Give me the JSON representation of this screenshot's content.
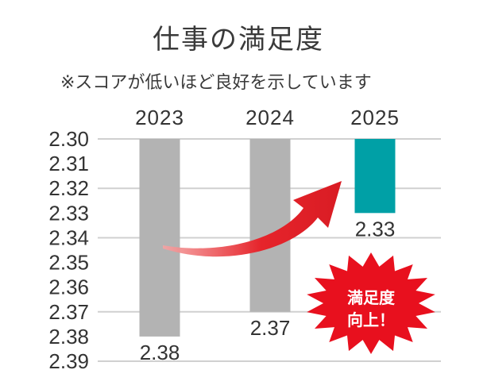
{
  "header": {
    "title": "仕事の満足度",
    "subtitle": "※スコアが低いほど良好を示しています"
  },
  "chart_data": {
    "type": "bar",
    "categories": [
      "2023",
      "2024",
      "2025"
    ],
    "values": [
      2.38,
      2.37,
      2.33
    ],
    "value_labels": [
      "2.38",
      "2.37",
      "2.33"
    ],
    "ylim": [
      2.3,
      2.39
    ],
    "y_axis_inverted": true,
    "y_ticks": [
      "2.30",
      "2.31",
      "2.32",
      "2.33",
      "2.34",
      "2.35",
      "2.36",
      "2.37",
      "2.38",
      "2.39"
    ],
    "gridlines": [
      2.3,
      2.32,
      2.34,
      2.37,
      2.39
    ],
    "x_labels_position": "top",
    "bar_colors": [
      "#b3b3b3",
      "#b3b3b3",
      "#00a0a6"
    ],
    "annotation": {
      "lines": [
        "満足度",
        "向上！"
      ],
      "burst_color": "#e8101e",
      "arrow_color": "#e6242b"
    }
  }
}
